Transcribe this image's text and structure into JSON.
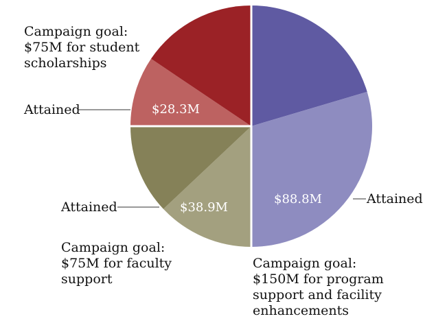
{
  "chart_data": {
    "type": "pie",
    "sections": [
      {
        "goal_label": [
          "Campaign goal:",
          "$150M for program",
          "support and facility",
          "enhancements"
        ],
        "goal_value": 150,
        "attained_value": 88.8,
        "attained_label": "$88.8M",
        "attained_caption": "Attained",
        "colors": {
          "remaining": "#5f5aa2",
          "attained": "#8e8cc0"
        }
      },
      {
        "goal_label": [
          "Campaign goal:",
          "$75M for faculty",
          "support"
        ],
        "goal_value": 75,
        "attained_value": 38.9,
        "attained_label": "$38.9M",
        "attained_caption": "Attained",
        "colors": {
          "remaining": "#858158",
          "attained": "#a3a07f"
        }
      },
      {
        "goal_label": [
          "Campaign goal:",
          "$75M for student",
          "scholarships"
        ],
        "goal_value": 75,
        "attained_value": 28.3,
        "attained_label": "$28.3M",
        "attained_caption": "Attained",
        "colors": {
          "remaining": "#9b2226",
          "attained": "#bd6261"
        }
      }
    ]
  }
}
